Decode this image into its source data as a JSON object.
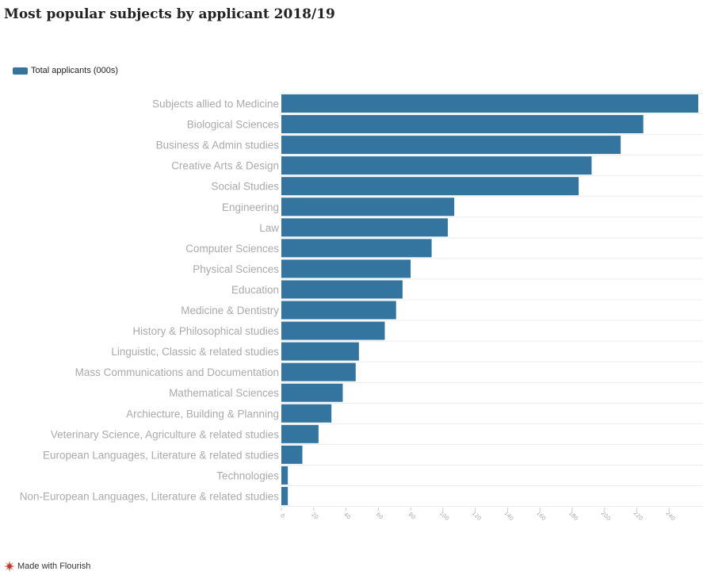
{
  "title": "Most popular subjects by applicant 2018/19",
  "legend_label": "Total applicants (000s)",
  "footer_label": "Made with Flourish",
  "footer_icon": "flourish-logo-icon",
  "colors": {
    "bar": "#33759f",
    "label": "#aaaaaa",
    "grid": "#ececec",
    "axis_tick": "#aaaaaa"
  },
  "chart_data": {
    "type": "bar",
    "orientation": "horizontal",
    "title": "Most popular subjects by applicant 2018/19",
    "xlabel": "",
    "ylabel": "",
    "xlim": [
      0,
      258
    ],
    "xticks": [
      0,
      20,
      40,
      60,
      80,
      100,
      120,
      140,
      160,
      180,
      200,
      220,
      240
    ],
    "legend_position": "top-left",
    "grid": true,
    "categories": [
      "Subjects allied to Medicine",
      "Biological Sciences",
      "Business & Admin studies",
      "Creative Arts & Design",
      "Social Studies",
      "Engineering",
      "Law",
      "Computer Sciences",
      "Physical Sciences",
      "Education",
      "Medicine & Dentistry",
      "History & Philosophical studies",
      "Linguistic, Classic & related studies",
      "Mass Communications and Documentation",
      "Mathematical Sciences",
      "Archiecture, Building & Planning",
      "Veterinary Science, Agriculture & related studies",
      "European Languages, Literature & related studies",
      "Technologies",
      "Non-European Languages, Literature & related studies"
    ],
    "series": [
      {
        "name": "Total applicants (000s)",
        "values": [
          258,
          224,
          210,
          192,
          184,
          107,
          103,
          93,
          80,
          75,
          71,
          64,
          48,
          46,
          38,
          31,
          23,
          13,
          4,
          4
        ]
      }
    ]
  }
}
